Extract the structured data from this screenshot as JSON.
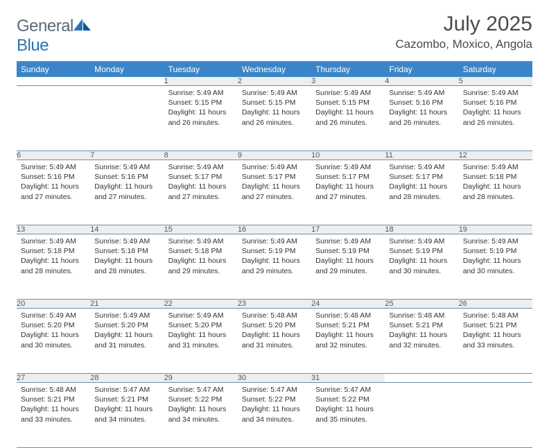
{
  "brand": {
    "text1": "General",
    "text2": "Blue"
  },
  "title": "July 2025",
  "location": "Cazombo, Moxico, Angola",
  "colors": {
    "header_bg": "#3a85c7",
    "header_fg": "#ffffff",
    "daynum_bg": "#eeeeee",
    "rule": "#6a8fae",
    "logo_gray": "#5a6a7a",
    "logo_blue": "#2a72b5"
  },
  "weekdays": [
    "Sunday",
    "Monday",
    "Tuesday",
    "Wednesday",
    "Thursday",
    "Friday",
    "Saturday"
  ],
  "weeks": [
    [
      null,
      null,
      {
        "n": "1",
        "sr": "5:49 AM",
        "ss": "5:15 PM",
        "dl": "11 hours and 26 minutes."
      },
      {
        "n": "2",
        "sr": "5:49 AM",
        "ss": "5:15 PM",
        "dl": "11 hours and 26 minutes."
      },
      {
        "n": "3",
        "sr": "5:49 AM",
        "ss": "5:15 PM",
        "dl": "11 hours and 26 minutes."
      },
      {
        "n": "4",
        "sr": "5:49 AM",
        "ss": "5:16 PM",
        "dl": "11 hours and 26 minutes."
      },
      {
        "n": "5",
        "sr": "5:49 AM",
        "ss": "5:16 PM",
        "dl": "11 hours and 26 minutes."
      }
    ],
    [
      {
        "n": "6",
        "sr": "5:49 AM",
        "ss": "5:16 PM",
        "dl": "11 hours and 27 minutes."
      },
      {
        "n": "7",
        "sr": "5:49 AM",
        "ss": "5:16 PM",
        "dl": "11 hours and 27 minutes."
      },
      {
        "n": "8",
        "sr": "5:49 AM",
        "ss": "5:17 PM",
        "dl": "11 hours and 27 minutes."
      },
      {
        "n": "9",
        "sr": "5:49 AM",
        "ss": "5:17 PM",
        "dl": "11 hours and 27 minutes."
      },
      {
        "n": "10",
        "sr": "5:49 AM",
        "ss": "5:17 PM",
        "dl": "11 hours and 27 minutes."
      },
      {
        "n": "11",
        "sr": "5:49 AM",
        "ss": "5:17 PM",
        "dl": "11 hours and 28 minutes."
      },
      {
        "n": "12",
        "sr": "5:49 AM",
        "ss": "5:18 PM",
        "dl": "11 hours and 28 minutes."
      }
    ],
    [
      {
        "n": "13",
        "sr": "5:49 AM",
        "ss": "5:18 PM",
        "dl": "11 hours and 28 minutes."
      },
      {
        "n": "14",
        "sr": "5:49 AM",
        "ss": "5:18 PM",
        "dl": "11 hours and 28 minutes."
      },
      {
        "n": "15",
        "sr": "5:49 AM",
        "ss": "5:18 PM",
        "dl": "11 hours and 29 minutes."
      },
      {
        "n": "16",
        "sr": "5:49 AM",
        "ss": "5:19 PM",
        "dl": "11 hours and 29 minutes."
      },
      {
        "n": "17",
        "sr": "5:49 AM",
        "ss": "5:19 PM",
        "dl": "11 hours and 29 minutes."
      },
      {
        "n": "18",
        "sr": "5:49 AM",
        "ss": "5:19 PM",
        "dl": "11 hours and 30 minutes."
      },
      {
        "n": "19",
        "sr": "5:49 AM",
        "ss": "5:19 PM",
        "dl": "11 hours and 30 minutes."
      }
    ],
    [
      {
        "n": "20",
        "sr": "5:49 AM",
        "ss": "5:20 PM",
        "dl": "11 hours and 30 minutes."
      },
      {
        "n": "21",
        "sr": "5:49 AM",
        "ss": "5:20 PM",
        "dl": "11 hours and 31 minutes."
      },
      {
        "n": "22",
        "sr": "5:49 AM",
        "ss": "5:20 PM",
        "dl": "11 hours and 31 minutes."
      },
      {
        "n": "23",
        "sr": "5:48 AM",
        "ss": "5:20 PM",
        "dl": "11 hours and 31 minutes."
      },
      {
        "n": "24",
        "sr": "5:48 AM",
        "ss": "5:21 PM",
        "dl": "11 hours and 32 minutes."
      },
      {
        "n": "25",
        "sr": "5:48 AM",
        "ss": "5:21 PM",
        "dl": "11 hours and 32 minutes."
      },
      {
        "n": "26",
        "sr": "5:48 AM",
        "ss": "5:21 PM",
        "dl": "11 hours and 33 minutes."
      }
    ],
    [
      {
        "n": "27",
        "sr": "5:48 AM",
        "ss": "5:21 PM",
        "dl": "11 hours and 33 minutes."
      },
      {
        "n": "28",
        "sr": "5:47 AM",
        "ss": "5:21 PM",
        "dl": "11 hours and 34 minutes."
      },
      {
        "n": "29",
        "sr": "5:47 AM",
        "ss": "5:22 PM",
        "dl": "11 hours and 34 minutes."
      },
      {
        "n": "30",
        "sr": "5:47 AM",
        "ss": "5:22 PM",
        "dl": "11 hours and 34 minutes."
      },
      {
        "n": "31",
        "sr": "5:47 AM",
        "ss": "5:22 PM",
        "dl": "11 hours and 35 minutes."
      },
      null,
      null
    ]
  ],
  "labels": {
    "sunrise": "Sunrise:",
    "sunset": "Sunset:",
    "daylight": "Daylight:"
  }
}
